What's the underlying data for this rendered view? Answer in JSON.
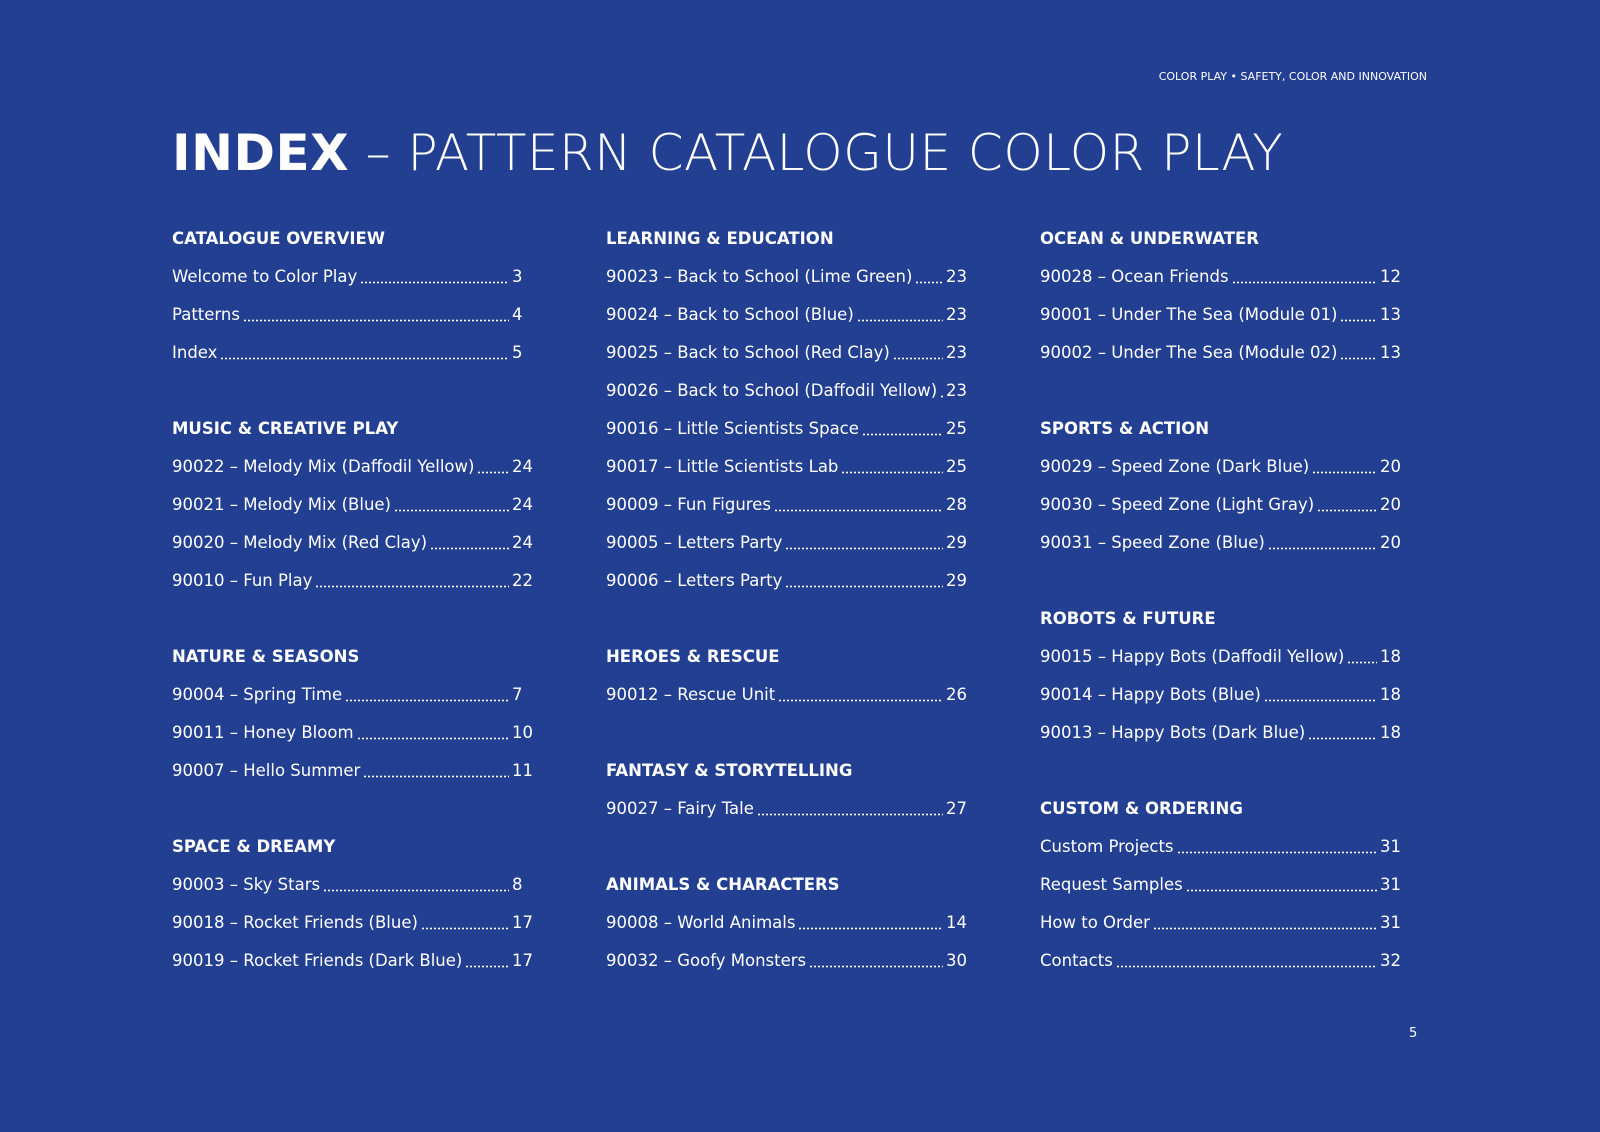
{
  "header": {
    "tagline": "COLOR PLAY • SAFETY, COLOR AND INNOVATION"
  },
  "title": {
    "bold": "INDEX",
    "rest": " – PATTERN CATALOGUE COLOR PLAY"
  },
  "columns": [
    [
      {
        "title": "CATALOGUE OVERVIEW",
        "entries": [
          {
            "label": "Welcome to Color Play",
            "page": "3"
          },
          {
            "label": "Patterns",
            "page": "4"
          },
          {
            "label": "Index",
            "page": "5"
          }
        ]
      },
      {
        "title": "MUSIC & CREATIVE PLAY",
        "entries": [
          {
            "label": "90022 – Melody Mix (Daffodil Yellow)",
            "page": "24"
          },
          {
            "label": "90021 – Melody Mix (Blue)",
            "page": "24"
          },
          {
            "label": "90020 – Melody Mix (Red Clay)",
            "page": "24"
          },
          {
            "label": "90010 – Fun Play",
            "page": "22"
          }
        ]
      },
      {
        "title": "NATURE & SEASONS",
        "entries": [
          {
            "label": "90004 – Spring Time",
            "page": "7"
          },
          {
            "label": "90011 – Honey Bloom",
            "page": "10"
          },
          {
            "label": "90007 – Hello Summer",
            "page": "11"
          }
        ]
      },
      {
        "title": "SPACE & DREAMY",
        "entries": [
          {
            "label": "90003 – Sky Stars",
            "page": "8"
          },
          {
            "label": "90018 – Rocket Friends (Blue)",
            "page": "17"
          },
          {
            "label": "90019 – Rocket Friends (Dark Blue)",
            "page": "17"
          }
        ]
      }
    ],
    [
      {
        "title": "LEARNING & EDUCATION",
        "entries": [
          {
            "label": "90023 – Back to School (Lime Green)",
            "page": "23"
          },
          {
            "label": "90024 – Back to School (Blue)",
            "page": "23"
          },
          {
            "label": "90025 – Back to School (Red Clay)",
            "page": "23"
          },
          {
            "label": "90026 – Back to School (Daffodil Yellow)",
            "page": "23"
          },
          {
            "label": "90016 – Little Scientists Space",
            "page": "25"
          },
          {
            "label": "90017 – Little Scientists Lab",
            "page": "25"
          },
          {
            "label": "90009 – Fun Figures",
            "page": "28"
          },
          {
            "label": "90005 – Letters Party",
            "page": "29"
          },
          {
            "label": "90006 – Letters Party",
            "page": "29"
          }
        ]
      },
      {
        "title": "HEROES & RESCUE",
        "entries": [
          {
            "label": "90012 – Rescue Unit",
            "page": "26"
          }
        ]
      },
      {
        "title": "FANTASY & STORYTELLING",
        "entries": [
          {
            "label": "90027 – Fairy Tale",
            "page": "27"
          }
        ]
      },
      {
        "title": "ANIMALS & CHARACTERS",
        "entries": [
          {
            "label": "90008 – World Animals",
            "page": "14"
          },
          {
            "label": "90032 – Goofy Monsters",
            "page": "30"
          }
        ]
      }
    ],
    [
      {
        "title": "OCEAN & UNDERWATER",
        "entries": [
          {
            "label": "90028 – Ocean Friends",
            "page": "12"
          },
          {
            "label": "90001 – Under The Sea (Module 01)",
            "page": "13"
          },
          {
            "label": "90002 – Under The Sea (Module 02)",
            "page": "13"
          }
        ]
      },
      {
        "title": "SPORTS & ACTION",
        "entries": [
          {
            "label": "90029 – Speed Zone (Dark Blue)",
            "page": "20"
          },
          {
            "label": "90030 – Speed Zone (Light Gray)",
            "page": "20"
          },
          {
            "label": "90031 – Speed Zone (Blue)",
            "page": "20"
          }
        ]
      },
      {
        "title": "ROBOTS & FUTURE",
        "entries": [
          {
            "label": "90015 – Happy Bots (Daffodil Yellow)",
            "page": "18"
          },
          {
            "label": "90014 – Happy Bots (Blue)",
            "page": "18"
          },
          {
            "label": "90013 – Happy Bots (Dark Blue)",
            "page": "18"
          }
        ]
      },
      {
        "title": "CUSTOM & ORDERING",
        "entries": [
          {
            "label": "Custom Projects",
            "page": "31"
          },
          {
            "label": "Request Samples",
            "page": "31"
          },
          {
            "label": "How to Order",
            "page": "31"
          },
          {
            "label": "Contacts",
            "page": "32"
          }
        ]
      }
    ]
  ],
  "footer": {
    "page_number": "5"
  }
}
